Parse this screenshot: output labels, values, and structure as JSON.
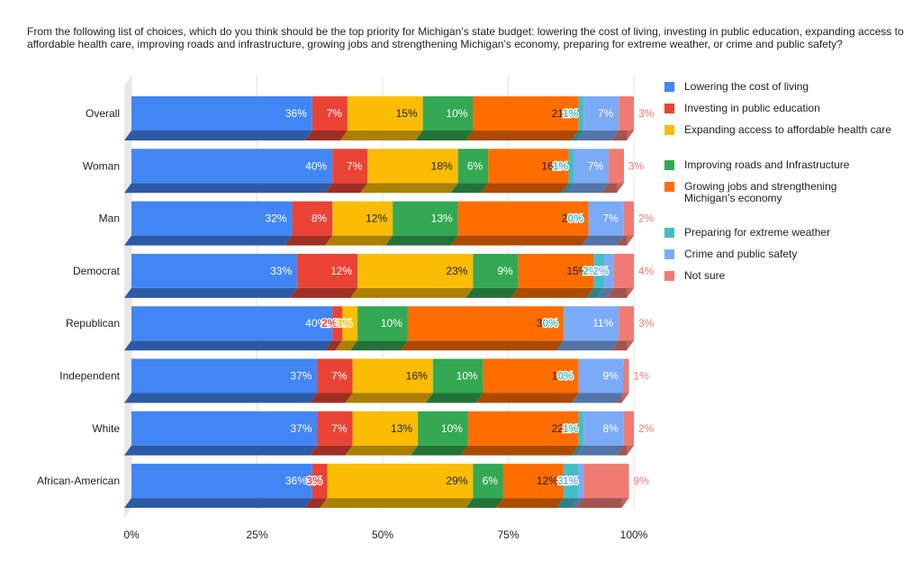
{
  "title": "From the following list of choices, which do you think should be the top priority for Michigan’s state budget: lowering the cost of living, investing in public education, expanding access to affordable health care, improving roads and infrastructure, growing jobs and strengthening Michigan’s economy, preparing for extreme weather, or crime and public safety?",
  "chart_data": {
    "type": "bar",
    "stacked": true,
    "orientation": "horizontal",
    "percent_stacked": true,
    "title": "From the following list of choices, which do you think should be the top priority for Michigan’s state budget: lowering the cost of living, investing in public education, expanding access to affordable health care, improving roads and infrastructure, growing jobs and strengthening Michigan’s economy, preparing for extreme weather, or crime and public safety?",
    "categories": [
      "Overall",
      "Woman",
      "Man",
      "Democrat",
      "Republican",
      "Independent",
      "White",
      "African-American"
    ],
    "x_ticks": [
      "0%",
      "25%",
      "50%",
      "75%",
      "100%"
    ],
    "xlim": [
      0,
      100
    ],
    "legend_position": "right",
    "series": [
      {
        "name": "Lowering the cost of living",
        "color": "#4285f4",
        "label_color": "#ffffff",
        "values": [
          36,
          40,
          32,
          33,
          40,
          37,
          37,
          36
        ],
        "labels": [
          "36%",
          "40%",
          "32%",
          "33%",
          "40%",
          "37%",
          "37%",
          "36%"
        ]
      },
      {
        "name": "Investing in public education",
        "color": "#ea4335",
        "label_color": "#ffffff",
        "values": [
          7,
          7,
          8,
          12,
          2,
          7,
          7,
          3
        ],
        "labels": [
          "7%",
          "7%",
          "8%",
          "12%",
          "2%",
          "7%",
          "7%",
          "3%"
        ]
      },
      {
        "name": "Expanding access to affordable health care",
        "color": "#fbbc04",
        "label_color": "#222222",
        "values": [
          15,
          18,
          12,
          23,
          3,
          16,
          13,
          29
        ],
        "labels": [
          "15%",
          "18%",
          "12%",
          "23%",
          "3%",
          "16%",
          "13%",
          "29%"
        ]
      },
      {
        "name": "Improving roads and Infrastructure",
        "color": "#34a853",
        "label_color": "#ffffff",
        "values": [
          10,
          6,
          13,
          9,
          10,
          10,
          10,
          6
        ],
        "labels": [
          "10%",
          "6%",
          "13%",
          "9%",
          "10%",
          "10%",
          "10%",
          "6%"
        ]
      },
      {
        "name": "Growing jobs and strengthening Michigan’s economy",
        "color": "#ff6d01",
        "label_color": "#222222",
        "values": [
          21,
          16,
          26,
          15,
          31,
          19,
          22,
          12
        ],
        "labels": [
          "21%",
          "16%",
          "26%",
          "15%",
          "31%",
          "19%",
          "22%",
          "12%"
        ]
      },
      {
        "name": "Preparing for extreme weather",
        "color": "#46bdc6",
        "label_color": "#ffffff",
        "values": [
          1,
          1,
          0,
          2,
          0,
          0,
          1,
          3
        ],
        "labels": [
          "1%",
          "1%",
          "0%",
          "2%",
          "0%",
          "0%",
          "1%",
          "3%"
        ]
      },
      {
        "name": "Crime and public safety",
        "color": "#7baaf7",
        "label_color": "#ffffff",
        "values": [
          7,
          7,
          7,
          2,
          11,
          9,
          8,
          1
        ],
        "labels": [
          "7%",
          "7%",
          "7%",
          "2%",
          "11%",
          "9%",
          "8%",
          "1%"
        ]
      },
      {
        "name": "Not sure",
        "color": "#f07b72",
        "label_color": "#f07b72",
        "values": [
          3,
          3,
          2,
          4,
          3,
          1,
          2,
          9
        ],
        "labels": [
          "3%",
          "3%",
          "2%",
          "4%",
          "3%",
          "1%",
          "2%",
          "9%"
        ]
      }
    ]
  }
}
